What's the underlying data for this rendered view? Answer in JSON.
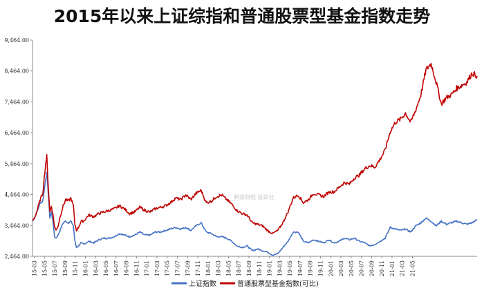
{
  "chart_data": {
    "type": "line",
    "title": "2015年以来上证综指和普通股票型基金指数走势",
    "xlabel": "",
    "ylabel": "",
    "ylim": [
      2464,
      9464
    ],
    "y_ticks": [
      "2,464.00",
      "3,464.00",
      "4,464.00",
      "5,464.00",
      "6,464.00",
      "7,464.00",
      "8,464.00",
      "9,464.00"
    ],
    "y_tick_values": [
      2464,
      3464,
      4464,
      5464,
      6464,
      7464,
      8464,
      9464
    ],
    "x_ticks": [
      "15-03",
      "15-05",
      "15-07",
      "15-09",
      "15-11",
      "16-01",
      "16-03",
      "16-05",
      "16-07",
      "16-09",
      "16-11",
      "17-01",
      "17-03",
      "17-05",
      "17-07",
      "17-09",
      "17-11",
      "18-01",
      "18-03",
      "18-05",
      "18-07",
      "18-09",
      "18-11",
      "19-01",
      "19-03",
      "19-05",
      "19-07",
      "19-09",
      "19-11",
      "20-01",
      "20-03",
      "20-05",
      "20-07",
      "20-09",
      "20-11",
      "21-01",
      "21-03",
      "21-05"
    ],
    "grid": false,
    "legend_position": "bottom-center",
    "colors": {
      "shanghai": "#4472C4",
      "fund": "#C00000"
    },
    "watermark": "新浪财经 投资社",
    "series": [
      {
        "name": "上证指数",
        "key": "shanghai",
        "points": [
          [
            0,
            3600
          ],
          [
            0.5,
            3750
          ],
          [
            1,
            3950
          ],
          [
            1.5,
            4200
          ],
          [
            2,
            4250
          ],
          [
            2.3,
            4600
          ],
          [
            2.6,
            5000
          ],
          [
            2.8,
            5150
          ],
          [
            3,
            4700
          ],
          [
            3.2,
            4200
          ],
          [
            3.4,
            3700
          ],
          [
            3.7,
            3900
          ],
          [
            4,
            3600
          ],
          [
            4.3,
            3100
          ],
          [
            4.6,
            3050
          ],
          [
            5,
            3150
          ],
          [
            5.5,
            3350
          ],
          [
            6,
            3550
          ],
          [
            6.5,
            3600
          ],
          [
            7,
            3550
          ],
          [
            7.5,
            3600
          ],
          [
            8,
            3450
          ],
          [
            8.3,
            2950
          ],
          [
            8.6,
            2750
          ],
          [
            9,
            2800
          ],
          [
            9.5,
            2900
          ],
          [
            10,
            2850
          ],
          [
            11,
            2950
          ],
          [
            12,
            2900
          ],
          [
            13,
            3000
          ],
          [
            14,
            3050
          ],
          [
            15,
            3050
          ],
          [
            16,
            3100
          ],
          [
            17,
            3200
          ],
          [
            18,
            3150
          ],
          [
            19,
            3100
          ],
          [
            20,
            3150
          ],
          [
            21,
            3250
          ],
          [
            22,
            3150
          ],
          [
            23,
            3150
          ],
          [
            24,
            3250
          ],
          [
            25,
            3250
          ],
          [
            26,
            3300
          ],
          [
            27,
            3350
          ],
          [
            28,
            3400
          ],
          [
            29,
            3350
          ],
          [
            30,
            3400
          ],
          [
            31,
            3300
          ],
          [
            32,
            3450
          ],
          [
            33,
            3550
          ],
          [
            34,
            3250
          ],
          [
            35,
            3200
          ],
          [
            36,
            3100
          ],
          [
            37,
            3100
          ],
          [
            38,
            3050
          ],
          [
            39,
            2950
          ],
          [
            40,
            2800
          ],
          [
            41,
            2750
          ],
          [
            42,
            2800
          ],
          [
            43,
            2650
          ],
          [
            44,
            2700
          ],
          [
            45,
            2650
          ],
          [
            46,
            2600
          ],
          [
            47,
            2500
          ],
          [
            48,
            2550
          ],
          [
            49,
            2750
          ],
          [
            50,
            2950
          ],
          [
            51,
            3250
          ],
          [
            52,
            3250
          ],
          [
            53,
            2950
          ],
          [
            54,
            2900
          ],
          [
            55,
            3000
          ],
          [
            56,
            2950
          ],
          [
            57,
            2900
          ],
          [
            58,
            3000
          ],
          [
            59,
            2900
          ],
          [
            60,
            2950
          ],
          [
            61,
            3050
          ],
          [
            62,
            3000
          ],
          [
            63,
            3050
          ],
          [
            64,
            2950
          ],
          [
            65,
            2900
          ],
          [
            66,
            2800
          ],
          [
            67,
            2850
          ],
          [
            68,
            2950
          ],
          [
            69,
            3050
          ],
          [
            70,
            3400
          ],
          [
            71,
            3350
          ],
          [
            72,
            3300
          ],
          [
            73,
            3350
          ],
          [
            74,
            3250
          ],
          [
            75,
            3450
          ],
          [
            76,
            3550
          ],
          [
            77,
            3700
          ],
          [
            78,
            3600
          ],
          [
            79,
            3450
          ],
          [
            80,
            3600
          ],
          [
            81,
            3500
          ],
          [
            82,
            3550
          ],
          [
            83,
            3600
          ],
          [
            84,
            3550
          ],
          [
            85,
            3500
          ],
          [
            86,
            3550
          ],
          [
            87,
            3650
          ]
        ]
      },
      {
        "name": "普通股票型基金指数(可比)",
        "key": "fund",
        "points": [
          [
            0,
            3600
          ],
          [
            0.5,
            3750
          ],
          [
            1,
            4000
          ],
          [
            1.5,
            4300
          ],
          [
            2,
            4500
          ],
          [
            2.3,
            5000
          ],
          [
            2.6,
            5500
          ],
          [
            2.8,
            5700
          ],
          [
            3,
            5000
          ],
          [
            3.2,
            4400
          ],
          [
            3.4,
            3900
          ],
          [
            3.7,
            4100
          ],
          [
            4,
            3800
          ],
          [
            4.3,
            3450
          ],
          [
            4.6,
            3300
          ],
          [
            5,
            3450
          ],
          [
            5.5,
            3800
          ],
          [
            6,
            4100
          ],
          [
            6.5,
            4300
          ],
          [
            7,
            4250
          ],
          [
            7.5,
            4350
          ],
          [
            8,
            4100
          ],
          [
            8.3,
            3500
          ],
          [
            8.6,
            3300
          ],
          [
            9,
            3400
          ],
          [
            9.5,
            3600
          ],
          [
            10,
            3600
          ],
          [
            11,
            3800
          ],
          [
            12,
            3750
          ],
          [
            13,
            3850
          ],
          [
            14,
            3900
          ],
          [
            15,
            3950
          ],
          [
            16,
            4000
          ],
          [
            17,
            4100
          ],
          [
            18,
            4000
          ],
          [
            19,
            3850
          ],
          [
            20,
            3900
          ],
          [
            21,
            4050
          ],
          [
            22,
            3950
          ],
          [
            23,
            3900
          ],
          [
            24,
            4000
          ],
          [
            25,
            4050
          ],
          [
            26,
            4100
          ],
          [
            27,
            4200
          ],
          [
            28,
            4350
          ],
          [
            29,
            4300
          ],
          [
            30,
            4450
          ],
          [
            31,
            4300
          ],
          [
            32,
            4500
          ],
          [
            33,
            4600
          ],
          [
            34,
            4200
          ],
          [
            35,
            4250
          ],
          [
            36,
            4400
          ],
          [
            37,
            4450
          ],
          [
            38,
            4300
          ],
          [
            39,
            4150
          ],
          [
            40,
            3950
          ],
          [
            41,
            3850
          ],
          [
            42,
            3800
          ],
          [
            43,
            3550
          ],
          [
            44,
            3500
          ],
          [
            45,
            3450
          ],
          [
            46,
            3300
          ],
          [
            47,
            3200
          ],
          [
            48,
            3300
          ],
          [
            49,
            3550
          ],
          [
            50,
            3900
          ],
          [
            51,
            4350
          ],
          [
            52,
            4450
          ],
          [
            53,
            4200
          ],
          [
            54,
            4300
          ],
          [
            55,
            4500
          ],
          [
            56,
            4450
          ],
          [
            57,
            4400
          ],
          [
            58,
            4550
          ],
          [
            59,
            4550
          ],
          [
            60,
            4700
          ],
          [
            61,
            4850
          ],
          [
            62,
            4800
          ],
          [
            63,
            5000
          ],
          [
            64,
            5100
          ],
          [
            65,
            5300
          ],
          [
            66,
            5400
          ],
          [
            67,
            5350
          ],
          [
            68,
            5600
          ],
          [
            69,
            5900
          ],
          [
            70,
            6500
          ],
          [
            71,
            6800
          ],
          [
            72,
            6900
          ],
          [
            73,
            7100
          ],
          [
            74,
            6800
          ],
          [
            75,
            7200
          ],
          [
            76,
            7700
          ],
          [
            77,
            8500
          ],
          [
            78,
            8700
          ],
          [
            79,
            8100
          ],
          [
            80,
            7400
          ],
          [
            81,
            7600
          ],
          [
            82,
            7700
          ],
          [
            83,
            7900
          ],
          [
            84,
            8000
          ],
          [
            85,
            8100
          ],
          [
            86,
            8400
          ],
          [
            87,
            8300
          ]
        ]
      }
    ]
  }
}
